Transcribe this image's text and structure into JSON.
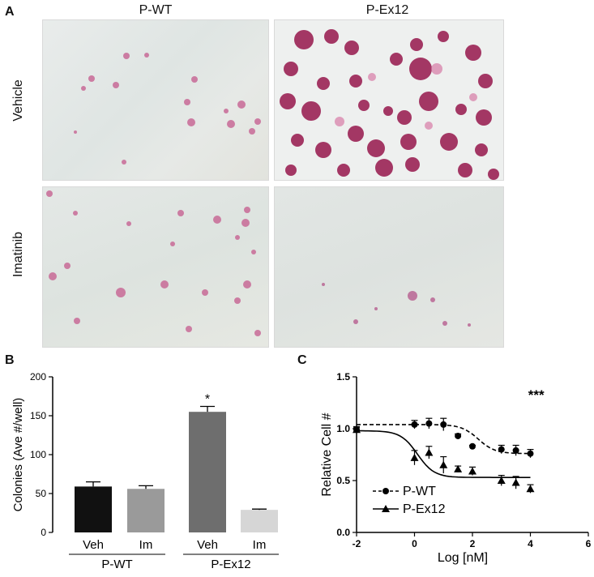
{
  "panel_a": {
    "letter": "A",
    "columns": [
      "P-WT",
      "P-Ex12"
    ],
    "rows": [
      "Vehicle",
      "Imatinib"
    ]
  },
  "panel_b": {
    "letter": "B"
  },
  "panel_c": {
    "letter": "C"
  },
  "chart_data": [
    {
      "type": "bar",
      "ylabel": "Colonies (Ave #/well)",
      "ylim": [
        0,
        200
      ],
      "yticks": [
        0,
        50,
        100,
        150,
        200
      ],
      "categories": [
        "Veh",
        "Im",
        "Veh",
        "Im"
      ],
      "groups": [
        "P-WT",
        "P-Ex12"
      ],
      "values": [
        59,
        56,
        155,
        29
      ],
      "errors": [
        6,
        4,
        7,
        1
      ],
      "colors": [
        "#111111",
        "#9a9a9a",
        "#6e6e6e",
        "#d6d6d6"
      ],
      "annotations": [
        {
          "category_index": 2,
          "text": "*"
        }
      ],
      "grid": false
    },
    {
      "type": "scatter",
      "xlabel": "Log [nM]",
      "ylabel": "Relative Cell #",
      "xlim": [
        -2,
        6
      ],
      "ylim": [
        0.0,
        1.5
      ],
      "xticks": [
        -2,
        0,
        2,
        4,
        6
      ],
      "yticks": [
        "0.0",
        "0.5",
        "1.0",
        "1.5"
      ],
      "significance": "***",
      "legend_position": "bottom-left",
      "series": [
        {
          "name": "P-WT",
          "marker": "circle",
          "line": "dashed",
          "x": [
            -2,
            0,
            0.5,
            1,
            1.5,
            2,
            3,
            3.5,
            4
          ],
          "y": [
            0.99,
            1.04,
            1.05,
            1.04,
            0.93,
            0.83,
            0.8,
            0.79,
            0.76
          ],
          "err": [
            0.03,
            0.04,
            0.05,
            0.06,
            0.02,
            0.01,
            0.04,
            0.05,
            0.04
          ],
          "fit_bottom": 0.76,
          "fit_top": 1.04,
          "fit_logEC50": 2.2
        },
        {
          "name": "P-Ex12",
          "marker": "triangle",
          "line": "solid",
          "x": [
            -2,
            0,
            0.5,
            1,
            1.5,
            2,
            3,
            3.5,
            4
          ],
          "y": [
            0.99,
            0.72,
            0.77,
            0.65,
            0.61,
            0.59,
            0.5,
            0.48,
            0.42
          ],
          "err": [
            0.02,
            0.07,
            0.06,
            0.08,
            0.03,
            0.04,
            0.05,
            0.06,
            0.04
          ],
          "fit_bottom": 0.53,
          "fit_top": 0.98,
          "fit_logEC50": 0.1
        }
      ]
    }
  ]
}
